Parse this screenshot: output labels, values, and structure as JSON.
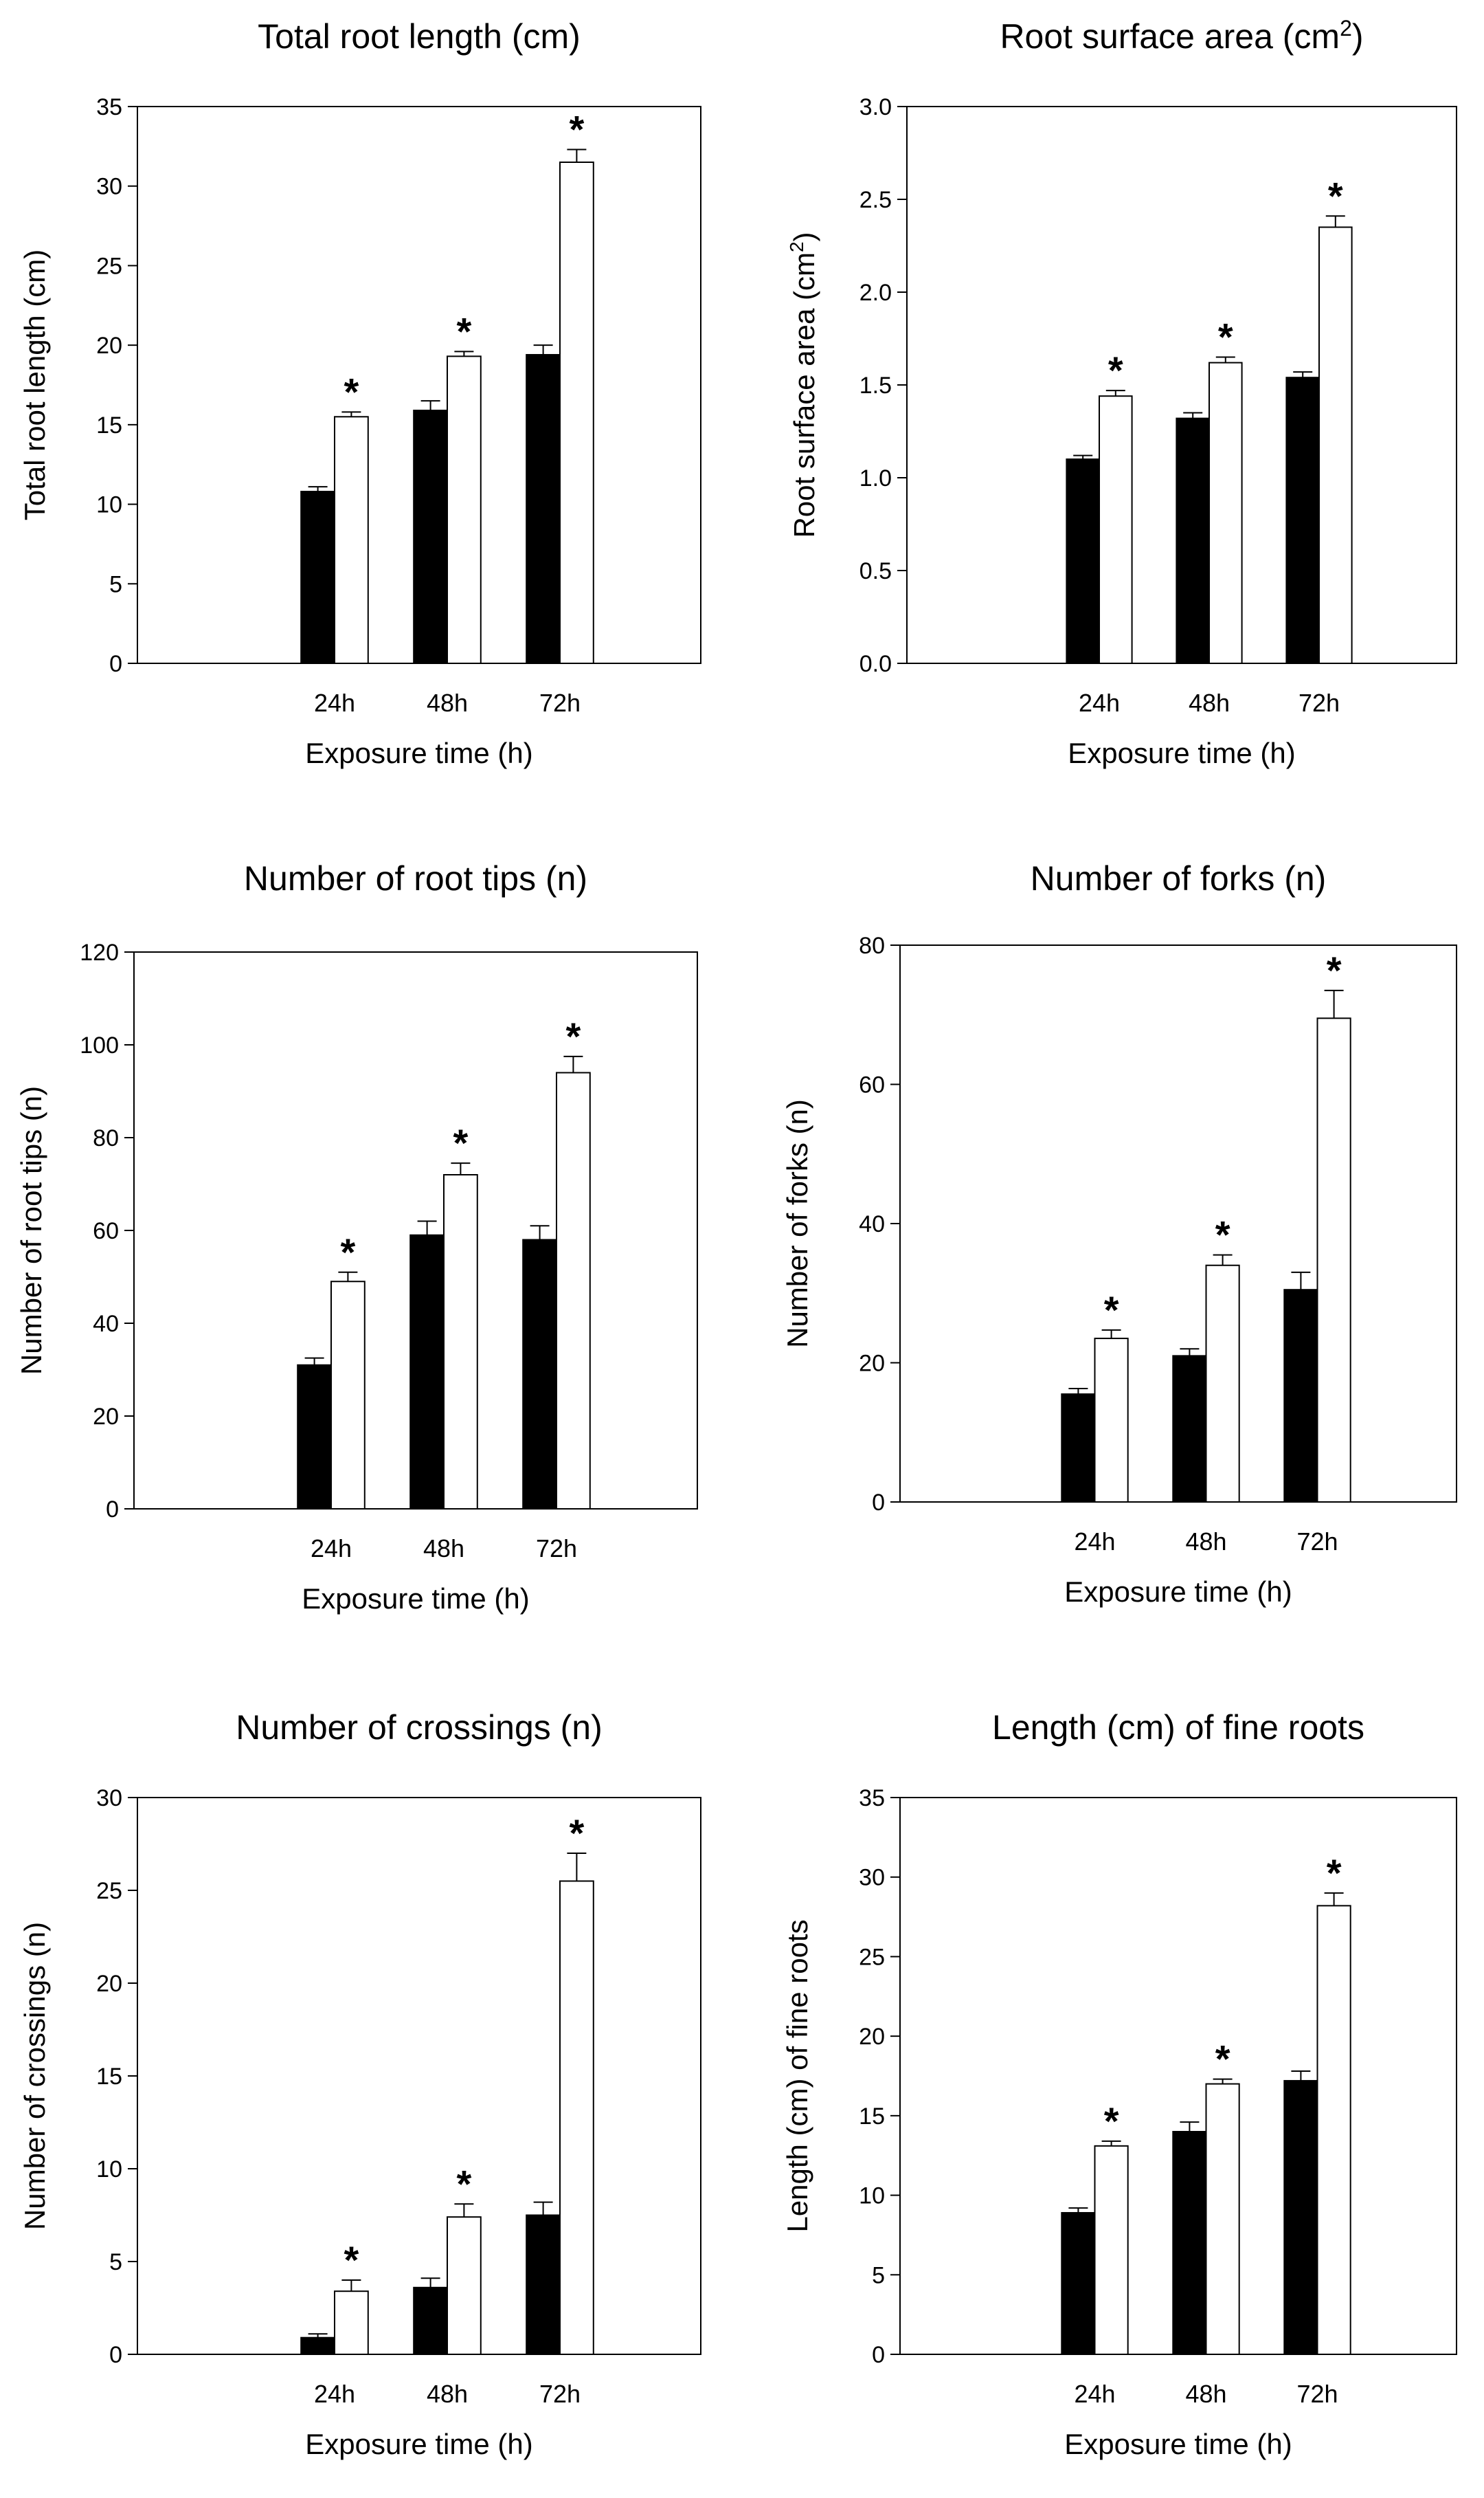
{
  "chart_data": [
    {
      "type": "bar",
      "title": "Total root length (cm)",
      "ylabel": "Total root length (cm)",
      "xlabel": "Exposure time (h)",
      "categories": [
        "24h",
        "48h",
        "72h"
      ],
      "ylim": [
        0,
        35
      ],
      "yticks": [
        "0",
        "5",
        "10",
        "15",
        "20",
        "25",
        "30",
        "35"
      ],
      "series": [
        {
          "name": "black",
          "color": "#000000",
          "values": [
            10.8,
            15.9,
            19.4
          ],
          "errors": [
            0.3,
            0.6,
            0.6
          ]
        },
        {
          "name": "white",
          "color": "#ffffff",
          "values": [
            15.5,
            19.3,
            31.5
          ],
          "errors": [
            0.3,
            0.3,
            0.8
          ]
        }
      ],
      "significance": [
        "*",
        "*",
        "*"
      ]
    },
    {
      "type": "bar",
      "title": "Root surface area (cm",
      "title_sup": "2",
      "title_end": ")",
      "ylabel": "Root surface area (cm",
      "ylabel_sup": "2",
      "ylabel_end": ")",
      "xlabel": "Exposure time (h)",
      "categories": [
        "24h",
        "48h",
        "72h"
      ],
      "ylim": [
        0,
        3.0
      ],
      "yticks": [
        "0.0",
        "0.5",
        "1.0",
        "1.5",
        "2.0",
        "2.5",
        "3.0"
      ],
      "series": [
        {
          "name": "black",
          "color": "#000000",
          "values": [
            1.1,
            1.32,
            1.54
          ],
          "errors": [
            0.02,
            0.03,
            0.03
          ]
        },
        {
          "name": "white",
          "color": "#ffffff",
          "values": [
            1.44,
            1.62,
            2.35
          ],
          "errors": [
            0.03,
            0.03,
            0.06
          ]
        }
      ],
      "significance": [
        "*",
        "*",
        "*"
      ]
    },
    {
      "type": "bar",
      "title": "Number of root tips (n)",
      "ylabel": "Number of root tips (n)",
      "xlabel": "Exposure time (h)",
      "categories": [
        "24h",
        "48h",
        "72h"
      ],
      "ylim": [
        0,
        120
      ],
      "yticks": [
        "0",
        "20",
        "40",
        "60",
        "80",
        "100",
        "120"
      ],
      "series": [
        {
          "name": "black",
          "color": "#000000",
          "values": [
            31,
            59,
            58
          ],
          "errors": [
            1.5,
            3,
            3
          ]
        },
        {
          "name": "white",
          "color": "#ffffff",
          "values": [
            49,
            72,
            94
          ],
          "errors": [
            2,
            2.5,
            3.5
          ]
        }
      ],
      "significance": [
        "*",
        "*",
        "*"
      ]
    },
    {
      "type": "bar",
      "title": "Number of forks (n)",
      "ylabel": "Number of forks (n)",
      "xlabel": "Exposure time (h)",
      "categories": [
        "24h",
        "48h",
        "72h"
      ],
      "ylim": [
        0,
        80
      ],
      "yticks": [
        "0",
        "20",
        "40",
        "60",
        "80"
      ],
      "series": [
        {
          "name": "black",
          "color": "#000000",
          "values": [
            15.5,
            21,
            30.5
          ],
          "errors": [
            0.8,
            1,
            2.5
          ]
        },
        {
          "name": "white",
          "color": "#ffffff",
          "values": [
            23.5,
            34,
            69.5
          ],
          "errors": [
            1.2,
            1.5,
            4
          ]
        }
      ],
      "significance": [
        "*",
        "*",
        "*"
      ]
    },
    {
      "type": "bar",
      "title": "Number of crossings (n)",
      "ylabel": "Number of crossings (n)",
      "xlabel": "Exposure time (h)",
      "categories": [
        "24h",
        "48h",
        "72h"
      ],
      "ylim": [
        0,
        30
      ],
      "yticks": [
        "0",
        "5",
        "10",
        "15",
        "20",
        "25",
        "30"
      ],
      "series": [
        {
          "name": "black",
          "color": "#000000",
          "values": [
            0.9,
            3.6,
            7.5
          ],
          "errors": [
            0.2,
            0.5,
            0.7
          ]
        },
        {
          "name": "white",
          "color": "#ffffff",
          "values": [
            3.4,
            7.4,
            25.5
          ],
          "errors": [
            0.6,
            0.7,
            1.5
          ]
        }
      ],
      "significance": [
        "*",
        "*",
        "*"
      ]
    },
    {
      "type": "bar",
      "title": "Length (cm) of fine roots",
      "ylabel": "Length (cm) of fine roots",
      "xlabel": "Exposure time (h)",
      "categories": [
        "24h",
        "48h",
        "72h"
      ],
      "ylim": [
        0,
        35
      ],
      "yticks": [
        "0",
        "5",
        "10",
        "15",
        "20",
        "25",
        "30",
        "35"
      ],
      "series": [
        {
          "name": "black",
          "color": "#000000",
          "values": [
            8.9,
            14.0,
            17.2
          ],
          "errors": [
            0.3,
            0.6,
            0.6
          ]
        },
        {
          "name": "white",
          "color": "#ffffff",
          "values": [
            13.1,
            17.0,
            28.2
          ],
          "errors": [
            0.3,
            0.3,
            0.8
          ]
        }
      ],
      "significance": [
        "*",
        "*",
        "*"
      ]
    }
  ]
}
